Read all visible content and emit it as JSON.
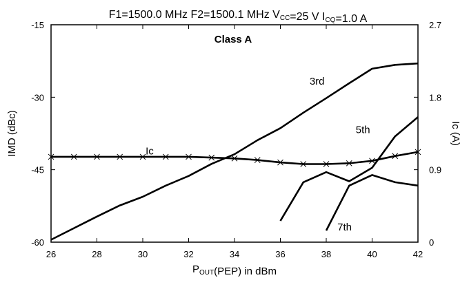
{
  "chart_data": {
    "type": "line",
    "title": {
      "parts": [
        {
          "text": "F1=1500.0 MHz  F2=1500.1 MHz  V"
        },
        {
          "text": "CC",
          "sub": true
        },
        {
          "text": "=25 V  I"
        },
        {
          "text": "CQ",
          "sub": true
        },
        {
          "text": "=1.0 A"
        }
      ]
    },
    "annotation": "Class A",
    "xlabel": {
      "parts": [
        {
          "text": "P"
        },
        {
          "text": "OUT",
          "sub": true
        },
        {
          "text": "(PEP) in dBm"
        }
      ]
    },
    "ylabel": "IMD (dBc)",
    "y2label": "Ic (A)",
    "xlim": [
      26,
      42
    ],
    "ylim": [
      -60,
      -15
    ],
    "y2lim": [
      0,
      2.7
    ],
    "xticks": [
      "26",
      "28",
      "30",
      "32",
      "34",
      "36",
      "38",
      "40",
      "42"
    ],
    "yticks": [
      "-60",
      "-45",
      "-30",
      "-15"
    ],
    "y2ticks": [
      "0",
      "0.9",
      "1.8",
      "2.7"
    ],
    "series": [
      {
        "name": "3rd",
        "axis": "left",
        "x": [
          26,
          27,
          28,
          29,
          30,
          31,
          32,
          33,
          34,
          35,
          36,
          37,
          38,
          39,
          40,
          41,
          42
        ],
        "y": [
          -59.5,
          -57.1,
          -54.7,
          -52.4,
          -50.6,
          -48.3,
          -46.3,
          -43.8,
          -41.8,
          -38.9,
          -36.4,
          -33.2,
          -30.2,
          -27.1,
          -24.1,
          -23.3,
          -23.0
        ]
      },
      {
        "name": "5th",
        "axis": "left",
        "x": [
          36,
          37,
          38,
          39,
          40,
          41,
          42
        ],
        "y": [
          -55.6,
          -47.6,
          -45.5,
          -47.4,
          -44.6,
          -38.1,
          -34.1
        ]
      },
      {
        "name": "7th",
        "axis": "left",
        "x": [
          38,
          39,
          40,
          41,
          42
        ],
        "y": [
          -57.6,
          -48.3,
          -46.1,
          -47.6,
          -48.3
        ]
      },
      {
        "name": "Ic",
        "axis": "right",
        "marker": "x",
        "x": [
          26,
          27,
          28,
          29,
          30,
          31,
          32,
          33,
          34,
          35,
          36,
          37,
          38,
          39,
          40,
          41,
          42
        ],
        "y": [
          1.06,
          1.06,
          1.06,
          1.06,
          1.06,
          1.06,
          1.06,
          1.05,
          1.04,
          1.02,
          0.99,
          0.97,
          0.97,
          0.98,
          1.01,
          1.07,
          1.12
        ]
      }
    ],
    "labels": [
      {
        "text": "3rd",
        "x": 37.6,
        "y": -27.4,
        "axis": "left"
      },
      {
        "text": "5th",
        "x": 39.6,
        "y": -37.4,
        "axis": "left"
      },
      {
        "text": "7th",
        "x": 38.8,
        "y": -57.6,
        "axis": "left"
      },
      {
        "text": "Ic",
        "x": 30.3,
        "y": 1.09,
        "axis": "right"
      }
    ]
  }
}
